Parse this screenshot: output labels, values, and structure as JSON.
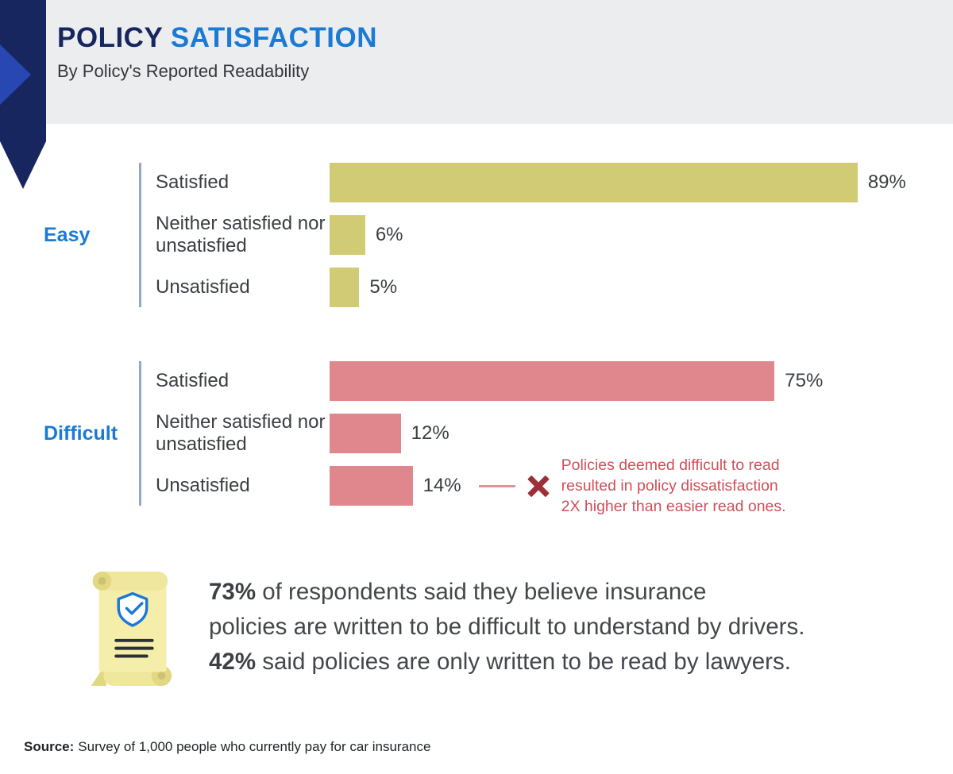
{
  "header": {
    "title_primary": "POLICY",
    "title_secondary": "SATISFACTION",
    "subtitle": "By Policy's Reported Readability"
  },
  "chart_data": {
    "type": "bar",
    "orientation": "horizontal",
    "value_unit": "percent",
    "xlim": [
      0,
      100
    ],
    "grid": false,
    "legend_position": "none",
    "groups": [
      {
        "name": "Easy",
        "bar_color": "#d2cb76",
        "categories": [
          "Satisfied",
          "Neither satisfied nor unsatisfied",
          "Unsatisfied"
        ],
        "values": [
          89,
          6,
          5
        ],
        "value_labels": [
          "89%",
          "6%",
          "5%"
        ]
      },
      {
        "name": "Difficult",
        "bar_color": "#e0878e",
        "categories": [
          "Satisfied",
          "Neither satisfied nor unsatisfied",
          "Unsatisfied"
        ],
        "values": [
          75,
          12,
          14
        ],
        "value_labels": [
          "75%",
          "12%",
          "14%"
        ]
      }
    ],
    "annotation": {
      "target": "Difficult - Unsatisfied",
      "color": "#cf4f59",
      "lines": [
        "Policies deemed difficult to read",
        "resulted in policy dissatisfaction",
        "2X higher than easier read ones."
      ]
    }
  },
  "callout": {
    "lines": [
      {
        "bold": "73%",
        "rest": " of respondents said they believe insurance"
      },
      {
        "bold": "",
        "rest": "policies are written to be difficult to understand by drivers."
      },
      {
        "bold": "42%",
        "rest": " said policies are only written to be read by lawyers."
      }
    ]
  },
  "footer": {
    "source_label": "Source:",
    "source_text": "Survey of 1,000 people who currently pay for car insurance"
  },
  "colors": {
    "title_primary": "#18265f",
    "title_secondary": "#1b7ad3",
    "header_background": "#ecedef",
    "easy_bar": "#d2cb76",
    "difficult_bar": "#e0878e",
    "group_label": "#1b7ad3",
    "annotation_red": "#cf4f59"
  }
}
